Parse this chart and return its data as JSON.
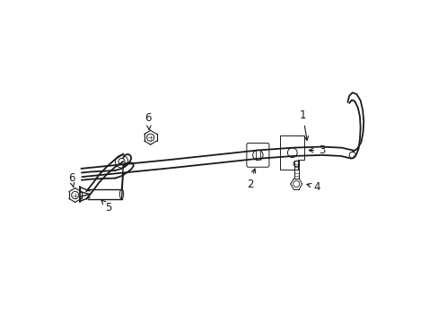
{
  "bg_color": "#ffffff",
  "line_color": "#1a1a1a",
  "figsize": [
    4.89,
    3.6
  ],
  "dpi": 100,
  "bar_upper": {
    "x": [
      0.08,
      0.18,
      0.3,
      0.42,
      0.54,
      0.63,
      0.72,
      0.8,
      0.87,
      0.915,
      0.935,
      0.945
    ],
    "y": [
      0.43,
      0.455,
      0.48,
      0.505,
      0.53,
      0.545,
      0.555,
      0.56,
      0.555,
      0.535,
      0.5,
      0.455
    ]
  },
  "bar_lower": {
    "x": [
      0.08,
      0.18,
      0.3,
      0.42,
      0.54,
      0.63,
      0.72,
      0.8,
      0.87,
      0.915,
      0.935,
      0.945
    ],
    "y": [
      0.4,
      0.425,
      0.45,
      0.475,
      0.505,
      0.518,
      0.528,
      0.535,
      0.528,
      0.505,
      0.468,
      0.42
    ]
  }
}
